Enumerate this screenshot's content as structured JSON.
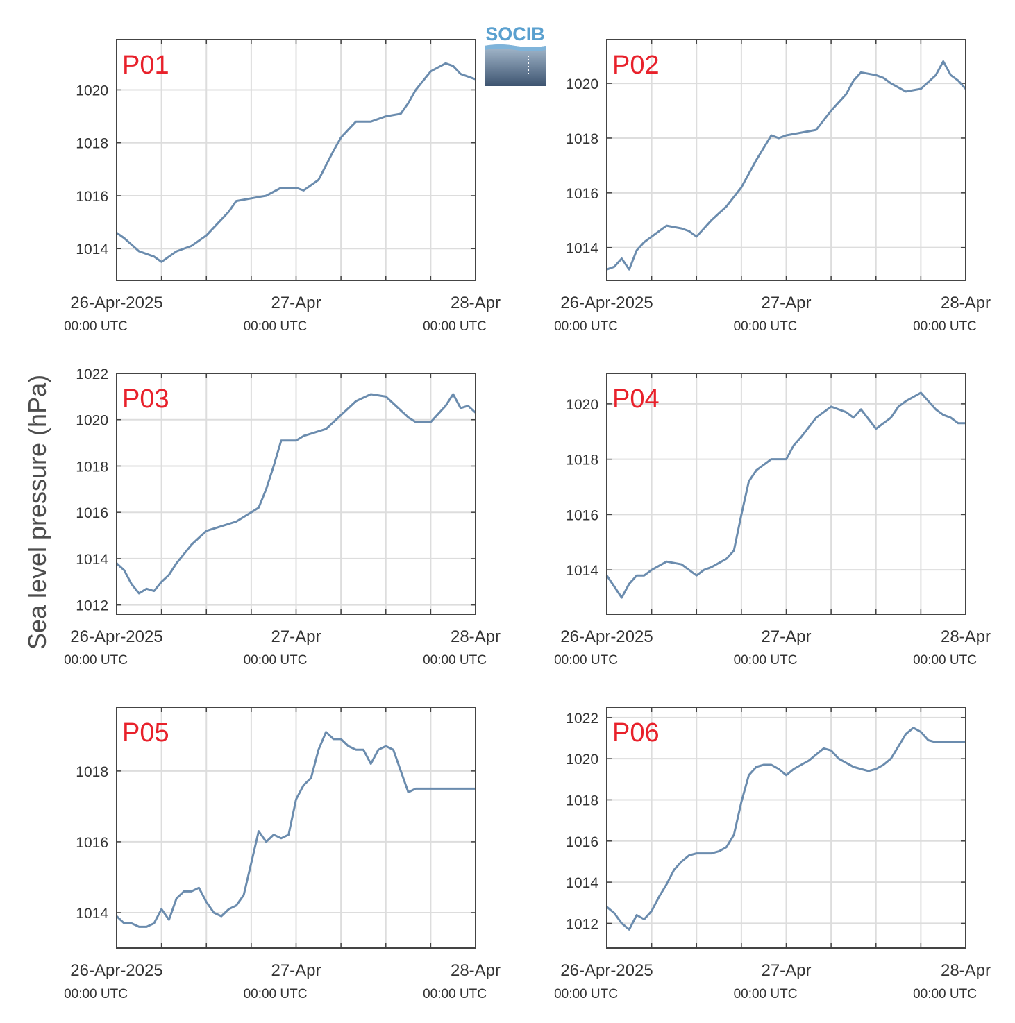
{
  "logo": {
    "text": "SOCIB",
    "color": "#5aa0cf"
  },
  "ylabel": "Sea level pressure (hPa)",
  "colors": {
    "line": "#6b8cae",
    "label": "#e8212b",
    "grid": "#dddddd",
    "frame": "#444444"
  },
  "chart_data": [
    {
      "type": "line",
      "label": "P01",
      "x_ticks": [
        {
          "date": "26-Apr-2025",
          "time": "00:00 UTC"
        },
        {
          "date": "27-Apr",
          "time": "00:00 UTC"
        },
        {
          "date": "28-Apr",
          "time": "00:00 UTC"
        }
      ],
      "x_hours": [
        0,
        1,
        3,
        5,
        6,
        8,
        10,
        12,
        14,
        15,
        16,
        18,
        20,
        22,
        24,
        25,
        27,
        29,
        30,
        32,
        34,
        36,
        38,
        39,
        40,
        42,
        44,
        45,
        46,
        48
      ],
      "y_ticks": [
        1014,
        1016,
        1018,
        1020
      ],
      "ylim": [
        1012.8,
        1021.9
      ],
      "values": [
        1014.6,
        1014.4,
        1013.9,
        1013.7,
        1013.5,
        1013.9,
        1014.1,
        1014.5,
        1015.1,
        1015.4,
        1015.8,
        1015.9,
        1016.0,
        1016.3,
        1016.3,
        1016.2,
        1016.6,
        1017.7,
        1018.2,
        1018.8,
        1018.8,
        1019.0,
        1019.1,
        1019.5,
        1020.0,
        1020.7,
        1021.0,
        1020.9,
        1020.6,
        1020.4
      ]
    },
    {
      "type": "line",
      "label": "P02",
      "x_ticks": [
        {
          "date": "26-Apr-2025",
          "time": "00:00 UTC"
        },
        {
          "date": "27-Apr",
          "time": "00:00 UTC"
        },
        {
          "date": "28-Apr",
          "time": "00:00 UTC"
        }
      ],
      "x_hours": [
        0,
        1,
        2,
        3,
        4,
        5,
        6,
        8,
        10,
        11,
        12,
        14,
        16,
        18,
        20,
        22,
        23,
        24,
        26,
        28,
        30,
        32,
        33,
        34,
        36,
        37,
        38,
        40,
        42,
        44,
        45,
        46,
        47,
        48
      ],
      "y_ticks": [
        1014,
        1016,
        1018,
        1020
      ],
      "ylim": [
        1012.8,
        1021.6
      ],
      "values": [
        1013.2,
        1013.3,
        1013.6,
        1013.2,
        1013.9,
        1014.2,
        1014.4,
        1014.8,
        1014.7,
        1014.6,
        1014.4,
        1015.0,
        1015.5,
        1016.2,
        1017.2,
        1018.1,
        1018.0,
        1018.1,
        1018.2,
        1018.3,
        1019.0,
        1019.6,
        1020.1,
        1020.4,
        1020.3,
        1020.2,
        1020.0,
        1019.7,
        1019.8,
        1020.3,
        1020.8,
        1020.3,
        1020.1,
        1019.8
      ]
    },
    {
      "type": "line",
      "label": "P03",
      "x_ticks": [
        {
          "date": "26-Apr-2025",
          "time": "00:00 UTC"
        },
        {
          "date": "27-Apr",
          "time": "00:00 UTC"
        },
        {
          "date": "28-Apr",
          "time": "00:00 UTC"
        }
      ],
      "x_hours": [
        0,
        1,
        2,
        3,
        4,
        5,
        6,
        7,
        8,
        10,
        12,
        14,
        16,
        18,
        19,
        20,
        21,
        22,
        24,
        25,
        26,
        28,
        30,
        32,
        34,
        36,
        38,
        39,
        40,
        42,
        44,
        45,
        46,
        47,
        48
      ],
      "y_ticks": [
        1012,
        1014,
        1016,
        1018,
        1020,
        1022
      ],
      "ylim": [
        1011.6,
        1022.0
      ],
      "values": [
        1013.8,
        1013.5,
        1012.9,
        1012.5,
        1012.7,
        1012.6,
        1013.0,
        1013.3,
        1013.8,
        1014.6,
        1015.2,
        1015.4,
        1015.6,
        1016.0,
        1016.2,
        1017.0,
        1018.0,
        1019.1,
        1019.1,
        1019.3,
        1019.4,
        1019.6,
        1020.2,
        1020.8,
        1021.1,
        1021.0,
        1020.4,
        1020.1,
        1019.9,
        1019.9,
        1020.6,
        1021.1,
        1020.5,
        1020.6,
        1020.3
      ]
    },
    {
      "type": "line",
      "label": "P04",
      "x_ticks": [
        {
          "date": "26-Apr-2025",
          "time": "00:00 UTC"
        },
        {
          "date": "27-Apr",
          "time": "00:00 UTC"
        },
        {
          "date": "28-Apr",
          "time": "00:00 UTC"
        }
      ],
      "x_hours": [
        0,
        1,
        2,
        3,
        4,
        5,
        6,
        8,
        10,
        12,
        13,
        14,
        16,
        17,
        18,
        19,
        20,
        21,
        22,
        24,
        25,
        26,
        28,
        30,
        32,
        33,
        34,
        36,
        37,
        38,
        39,
        40,
        42,
        44,
        45,
        46,
        47,
        48
      ],
      "y_ticks": [
        1014,
        1016,
        1018,
        1020
      ],
      "ylim": [
        1012.4,
        1021.1
      ],
      "values": [
        1013.8,
        1013.4,
        1013.0,
        1013.5,
        1013.8,
        1013.8,
        1014.0,
        1014.3,
        1014.2,
        1013.8,
        1014.0,
        1014.1,
        1014.4,
        1014.7,
        1016.0,
        1017.2,
        1017.6,
        1017.8,
        1018.0,
        1018.0,
        1018.5,
        1018.8,
        1019.5,
        1019.9,
        1019.7,
        1019.5,
        1019.8,
        1019.1,
        1019.3,
        1019.5,
        1019.9,
        1020.1,
        1020.4,
        1019.8,
        1019.6,
        1019.5,
        1019.3,
        1019.3
      ]
    },
    {
      "type": "line",
      "label": "P05",
      "x_ticks": [
        {
          "date": "26-Apr-2025",
          "time": "00:00 UTC"
        },
        {
          "date": "27-Apr",
          "time": "00:00 UTC"
        },
        {
          "date": "28-Apr",
          "time": "00:00 UTC"
        }
      ],
      "x_hours": [
        0,
        1,
        2,
        3,
        4,
        5,
        6,
        7,
        8,
        9,
        10,
        11,
        12,
        13,
        14,
        15,
        16,
        17,
        18,
        19,
        20,
        21,
        22,
        23,
        24,
        25,
        26,
        27,
        28,
        29,
        30,
        31,
        32,
        33,
        34,
        35,
        36,
        37,
        38,
        39,
        40,
        41,
        42,
        43,
        44,
        45,
        46,
        47,
        48
      ],
      "y_ticks": [
        1014,
        1016,
        1018
      ],
      "ylim": [
        1013.0,
        1019.8
      ],
      "values": [
        1013.9,
        1013.7,
        1013.7,
        1013.6,
        1013.6,
        1013.7,
        1014.1,
        1013.8,
        1014.4,
        1014.6,
        1014.6,
        1014.7,
        1014.3,
        1014.0,
        1013.9,
        1014.1,
        1014.2,
        1014.5,
        1015.4,
        1016.3,
        1016.0,
        1016.2,
        1016.1,
        1016.2,
        1017.2,
        1017.6,
        1017.8,
        1018.6,
        1019.1,
        1018.9,
        1018.9,
        1018.7,
        1018.6,
        1018.6,
        1018.2,
        1018.6,
        1018.7,
        1018.6,
        1018.0,
        1017.4,
        1017.5,
        1017.5,
        1017.5,
        1017.5,
        1017.5,
        1017.5,
        1017.5,
        1017.5,
        1017.5
      ]
    },
    {
      "type": "line",
      "label": "P06",
      "x_ticks": [
        {
          "date": "26-Apr-2025",
          "time": "00:00 UTC"
        },
        {
          "date": "27-Apr",
          "time": "00:00 UTC"
        },
        {
          "date": "28-Apr",
          "time": "00:00 UTC"
        }
      ],
      "x_hours": [
        0,
        1,
        2,
        3,
        4,
        5,
        6,
        7,
        8,
        9,
        10,
        11,
        12,
        13,
        14,
        15,
        16,
        17,
        18,
        19,
        20,
        21,
        22,
        23,
        24,
        25,
        26,
        27,
        28,
        29,
        30,
        31,
        32,
        33,
        34,
        35,
        36,
        37,
        38,
        39,
        40,
        41,
        42,
        43,
        44,
        45,
        46,
        47,
        48
      ],
      "y_ticks": [
        1012,
        1014,
        1016,
        1018,
        1020,
        1022
      ],
      "ylim": [
        1010.8,
        1022.5
      ],
      "values": [
        1012.8,
        1012.5,
        1012.0,
        1011.7,
        1012.4,
        1012.2,
        1012.6,
        1013.3,
        1013.9,
        1014.6,
        1015.0,
        1015.3,
        1015.4,
        1015.4,
        1015.4,
        1015.5,
        1015.7,
        1016.3,
        1017.9,
        1019.2,
        1019.6,
        1019.7,
        1019.7,
        1019.5,
        1019.2,
        1019.5,
        1019.7,
        1019.9,
        1020.2,
        1020.5,
        1020.4,
        1020.0,
        1019.8,
        1019.6,
        1019.5,
        1019.4,
        1019.5,
        1019.7,
        1020.0,
        1020.6,
        1021.2,
        1021.5,
        1021.3,
        1020.9,
        1020.8,
        1020.8,
        1020.8,
        1020.8,
        1020.8
      ]
    }
  ]
}
